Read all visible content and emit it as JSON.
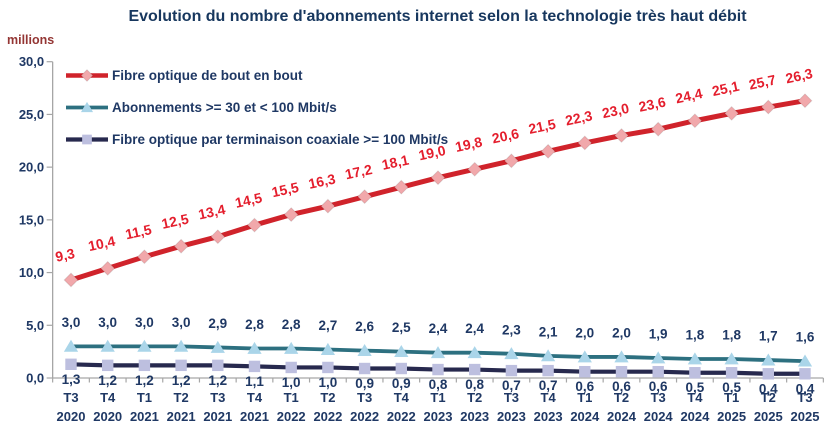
{
  "title": "Evolution du nombre d'abonnements internet selon la technologie très haut débit",
  "y_axis": {
    "unit_label": "millions",
    "tick_labels": [
      "30,0",
      "25,0",
      "20,0",
      "15,0",
      "10,0",
      "5,0",
      "0,0"
    ],
    "tick_values": [
      30,
      25,
      20,
      15,
      10,
      5,
      0
    ]
  },
  "chart_data": {
    "type": "line",
    "title": "Evolution du nombre d'abonnements internet selon la technologie très haut débit",
    "ylabel": "millions",
    "ylim": [
      0,
      30
    ],
    "grid": false,
    "legend_position": "top-left-inside",
    "categories": [
      "T3 2020",
      "T4 2020",
      "T1 2021",
      "T2 2021",
      "T3 2021",
      "T4 2021",
      "T1 2022",
      "T2 2022",
      "T3 2022",
      "T4 2022",
      "T1 2023",
      "T2 2023",
      "T3 2023",
      "T4 2023",
      "T1 2024",
      "T2 2024",
      "T3 2024",
      "T4 2024",
      "T1 2025",
      "T2 2025",
      "T3 2025"
    ],
    "series": [
      {
        "name": "Fibre optique de bout en bout",
        "marker": "diamond",
        "line_color": "#d0232b",
        "marker_color": "#f1a8ab",
        "label_color": "#e41e2d",
        "values": [
          9.3,
          10.4,
          11.5,
          12.5,
          13.4,
          14.5,
          15.5,
          16.3,
          17.2,
          18.1,
          19.0,
          19.8,
          20.6,
          21.5,
          22.3,
          23.0,
          23.6,
          24.4,
          25.1,
          25.7,
          26.3
        ],
        "labels": [
          "9,3",
          "10,4",
          "11,5",
          "12,5",
          "13,4",
          "14,5",
          "15,5",
          "16,3",
          "17,2",
          "18,1",
          "19,0",
          "19,8",
          "20,6",
          "21,5",
          "22,3",
          "23,0",
          "23,6",
          "24,4",
          "25,1",
          "25,7",
          "26,3"
        ]
      },
      {
        "name": "Abonnements >= 30 et < 100 Mbit/s",
        "marker": "triangle",
        "line_color": "#2d7080",
        "marker_color": "#aad5e9",
        "label_color": "#1f3864",
        "values": [
          3.0,
          3.0,
          3.0,
          3.0,
          2.9,
          2.8,
          2.8,
          2.7,
          2.6,
          2.5,
          2.4,
          2.4,
          2.3,
          2.1,
          2.0,
          2.0,
          1.9,
          1.8,
          1.8,
          1.7,
          1.6
        ],
        "labels": [
          "3,0",
          "3,0",
          "3,0",
          "3,0",
          "2,9",
          "2,8",
          "2,8",
          "2,7",
          "2,6",
          "2,5",
          "2,4",
          "2,4",
          "2,3",
          "2,1",
          "2,0",
          "2,0",
          "1,9",
          "1,8",
          "1,8",
          "1,7",
          "1,6"
        ]
      },
      {
        "name": "Fibre optique par terminaison coaxiale >= 100 Mbit/s",
        "marker": "square",
        "line_color": "#27294e",
        "marker_color": "#bdbfdf",
        "label_color": "#1f3864",
        "values": [
          1.3,
          1.2,
          1.2,
          1.2,
          1.2,
          1.1,
          1.0,
          1.0,
          0.9,
          0.9,
          0.8,
          0.8,
          0.7,
          0.7,
          0.6,
          0.6,
          0.6,
          0.5,
          0.5,
          0.4,
          0.4
        ],
        "labels": [
          "1,3",
          "1,2",
          "1,2",
          "1,2",
          "1,2",
          "1,1",
          "1,0",
          "1,0",
          "0,9",
          "0,9",
          "0,8",
          "0,8",
          "0,7",
          "0,7",
          "0,6",
          "0,6",
          "0,6",
          "0,5",
          "0,5",
          "0,4",
          "0,4"
        ]
      }
    ]
  },
  "colors": {
    "title": "#17375e",
    "axis_text": "#1f3864",
    "unit_label": "#943634",
    "axis_line": "#a6a6a6"
  }
}
